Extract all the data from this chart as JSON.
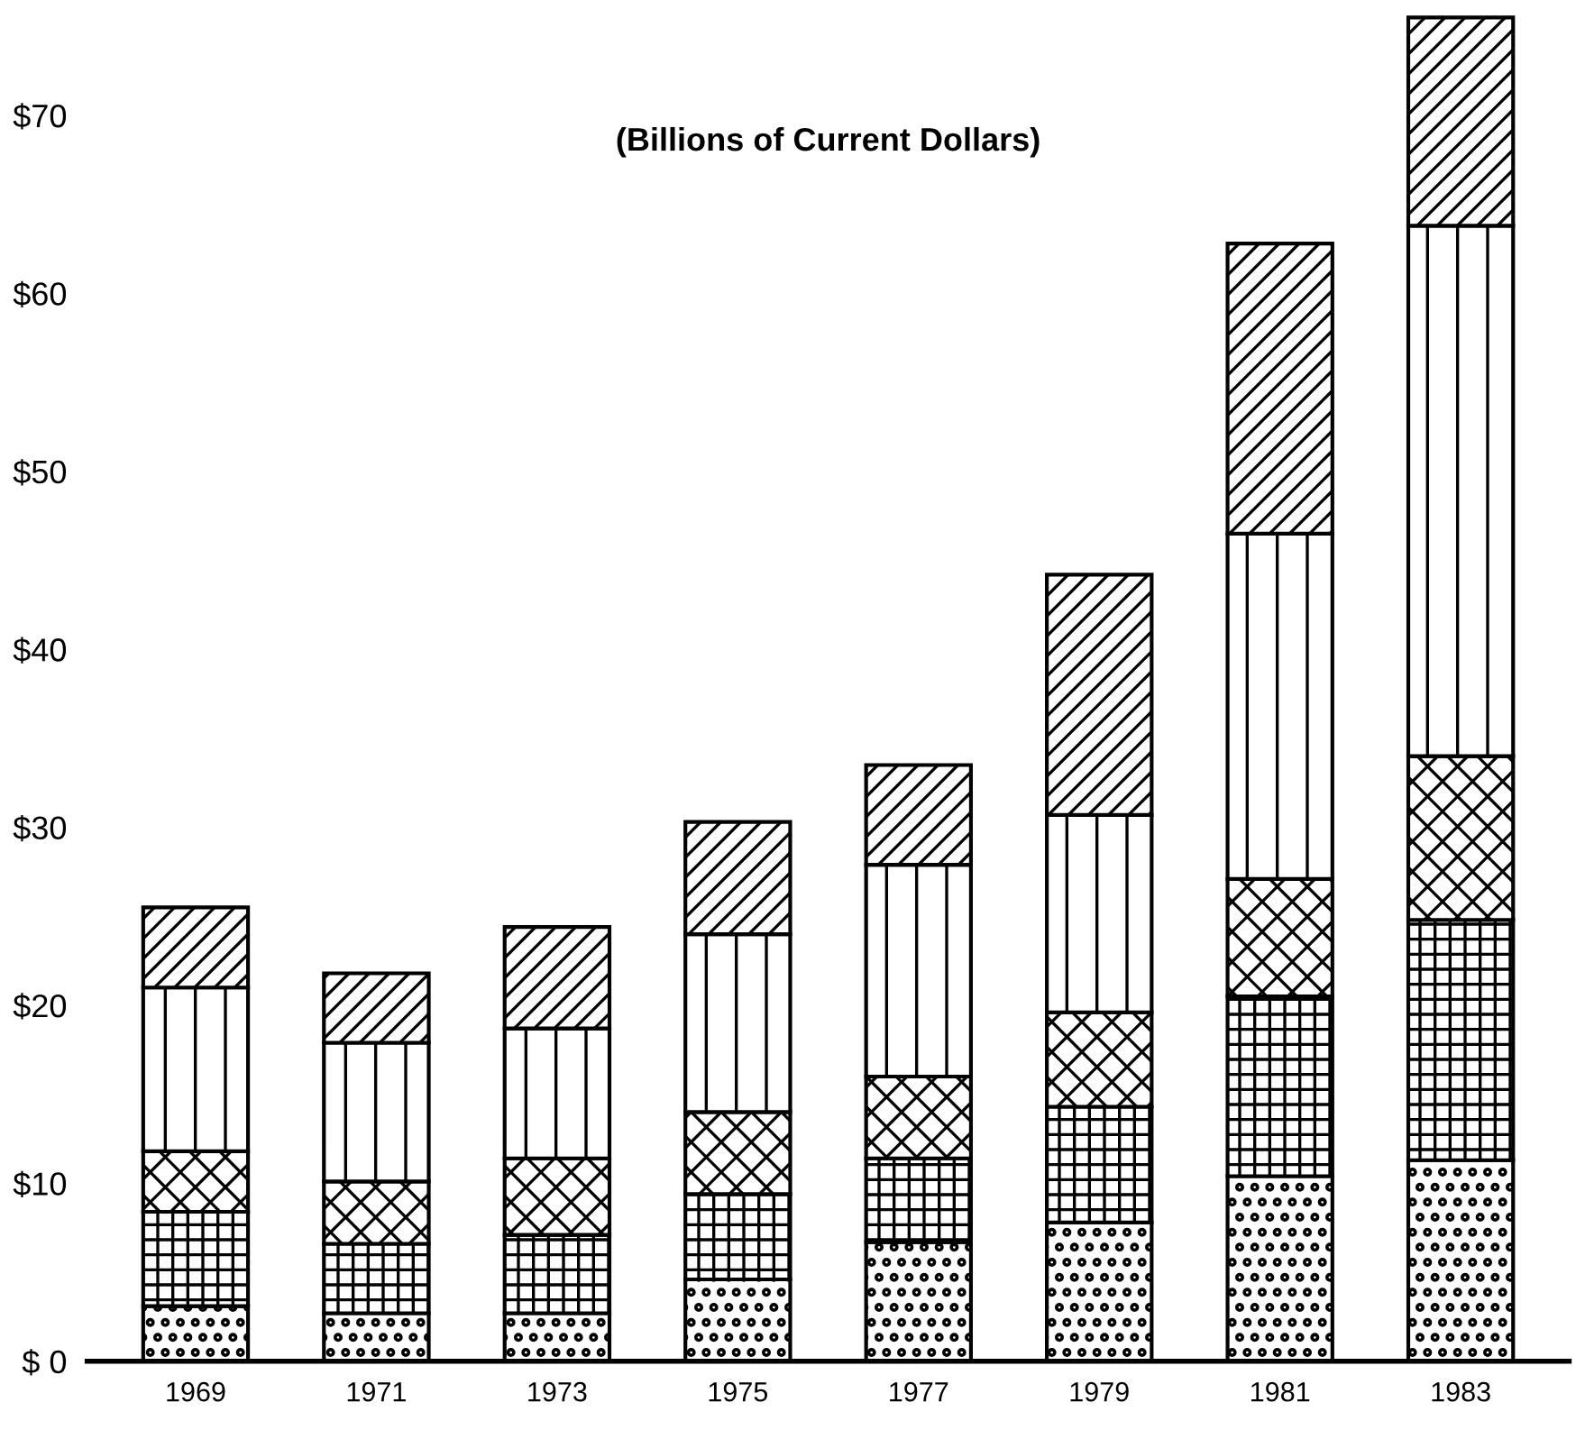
{
  "chart_data": {
    "type": "bar",
    "stacked": true,
    "title": "(Billions of Current Dollars)",
    "categories": [
      "1969",
      "1971",
      "1973",
      "1975",
      "1977",
      "1979",
      "1981",
      "1983"
    ],
    "series": [
      {
        "color": "#000000",
        "values": [
          3.1,
          2.7,
          2.7,
          4.6,
          6.7,
          7.8,
          10.4,
          11.3
        ]
      },
      {
        "color": "#000000",
        "values": [
          5.3,
          3.9,
          4.4,
          4.8,
          4.7,
          6.5,
          10.1,
          13.5
        ]
      },
      {
        "color": "#000000",
        "values": [
          3.4,
          3.5,
          4.3,
          4.6,
          4.6,
          5.3,
          6.6,
          9.2
        ]
      },
      {
        "color": "#000000",
        "values": [
          9.2,
          7.8,
          7.3,
          10.0,
          11.9,
          11.1,
          19.4,
          29.8
        ]
      },
      {
        "color": "#000000",
        "values": [
          4.5,
          3.9,
          5.7,
          6.3,
          5.6,
          13.5,
          16.3,
          11.7
        ]
      }
    ],
    "ylim": [
      0,
      76
    ],
    "yticks": [
      {
        "value": 0,
        "label": "$ 0"
      },
      {
        "value": 10,
        "label": "$10"
      },
      {
        "value": 20,
        "label": "$20"
      },
      {
        "value": 30,
        "label": "$30"
      },
      {
        "value": 40,
        "label": "$40"
      },
      {
        "value": 50,
        "label": "$50"
      },
      {
        "value": 60,
        "label": "$60"
      },
      {
        "value": 70,
        "label": "$70"
      }
    ],
    "grid": false,
    "legend": false
  }
}
